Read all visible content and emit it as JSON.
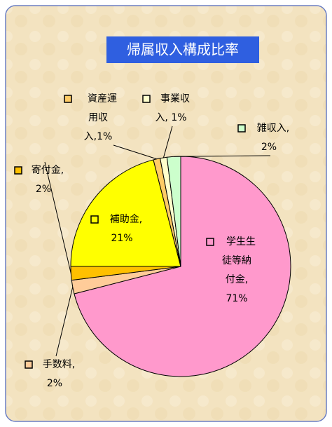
{
  "chart_data": {
    "type": "pie",
    "title": "帰属収入構成比率",
    "values": [
      71,
      2,
      2,
      21,
      1,
      1,
      2
    ],
    "colors": [
      "#ff99cc",
      "#ffcc99",
      "#ffc000",
      "#ffff00",
      "#ffcc66",
      "#ffffcc",
      "#ccffcc"
    ],
    "labels": [
      [
        "学生生",
        "徒等納",
        "付金,",
        "71%"
      ],
      [
        "手数料,",
        "2%"
      ],
      [
        "寄付金,",
        "2%"
      ],
      [
        "補助金,",
        "21%"
      ],
      [
        "資産運",
        "用収",
        "入,1%"
      ],
      [
        "事業収",
        "入, 1%"
      ],
      [
        "雑収入,",
        "2%"
      ]
    ]
  }
}
